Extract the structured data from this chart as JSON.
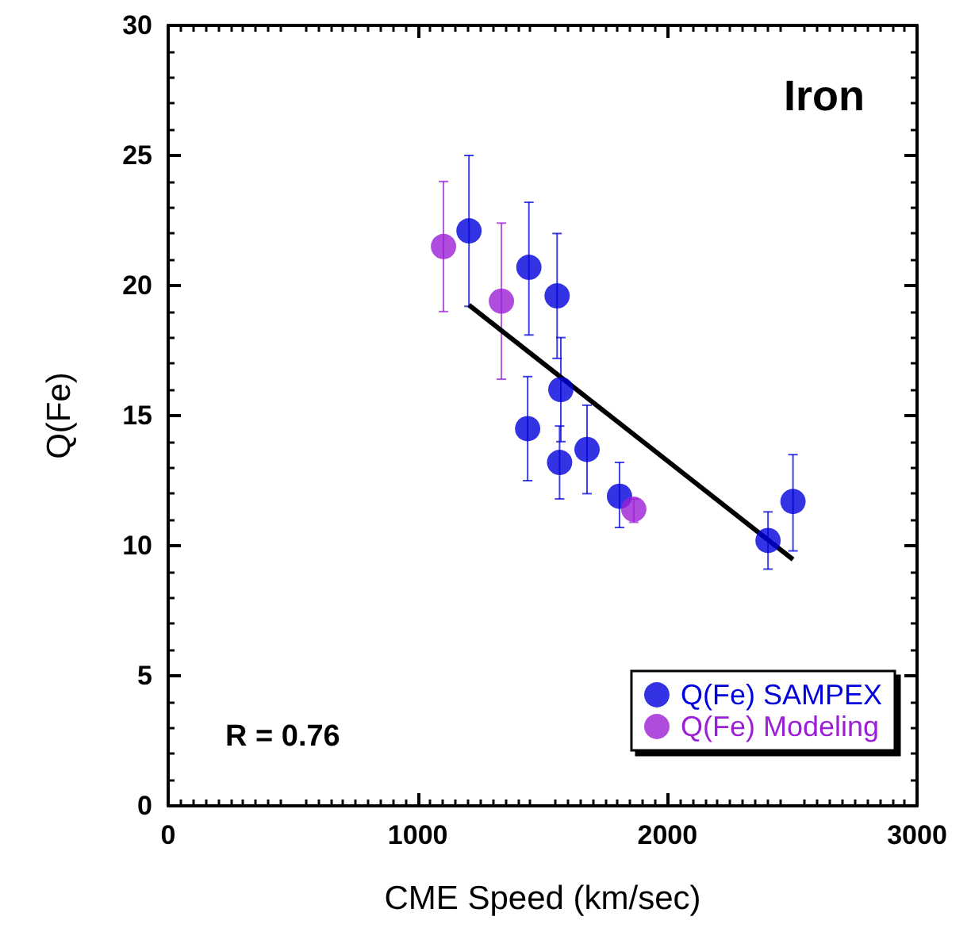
{
  "chart_data": {
    "type": "scatter",
    "title": "Iron",
    "xlabel": "CME Speed (km/sec)",
    "ylabel": "Q(Fe)",
    "annotations": [
      "R = 0.76"
    ],
    "xlim": [
      0,
      3000
    ],
    "xticks": [
      0,
      1000,
      2000,
      3000
    ],
    "ylim": [
      0,
      30
    ],
    "yticks": [
      0,
      5,
      10,
      15,
      20,
      25,
      30
    ],
    "grid": false,
    "legend": "bottom right",
    "marker": "circle",
    "series": [
      {
        "name": "Q(Fe) SAMPEX",
        "color": "#0000dd",
        "x": [
          1205,
          1445,
          1558,
          1573,
          1440,
          1568,
          1678,
          1808,
          2403,
          2503
        ],
        "values": [
          22.1,
          20.7,
          19.6,
          16.0,
          14.5,
          13.2,
          13.7,
          11.9,
          10.2,
          11.7
        ],
        "errors": [
          [
            19.2,
            25.0
          ],
          [
            18.1,
            23.2
          ],
          [
            17.2,
            22.0
          ],
          [
            14.0,
            18.0
          ],
          [
            12.5,
            16.5
          ],
          [
            11.8,
            14.6
          ],
          [
            12.0,
            15.4
          ],
          [
            10.7,
            13.2
          ],
          [
            9.1,
            11.3
          ],
          [
            9.8,
            13.5
          ]
        ]
      },
      {
        "name": "Q(Fe) Modeling",
        "color": "#9b1fd6",
        "x": [
          1103,
          1335,
          1865
        ],
        "values": [
          21.5,
          19.4,
          11.4
        ],
        "errors": [
          [
            19.0,
            24.0
          ],
          [
            16.4,
            22.4
          ],
          [
            10.9,
            11.8
          ]
        ]
      },
      {
        "type": "line",
        "color": "#000000",
        "marker": "none",
        "x": [
          1205,
          2503
        ],
        "values": [
          19.25,
          9.47
        ]
      }
    ]
  }
}
